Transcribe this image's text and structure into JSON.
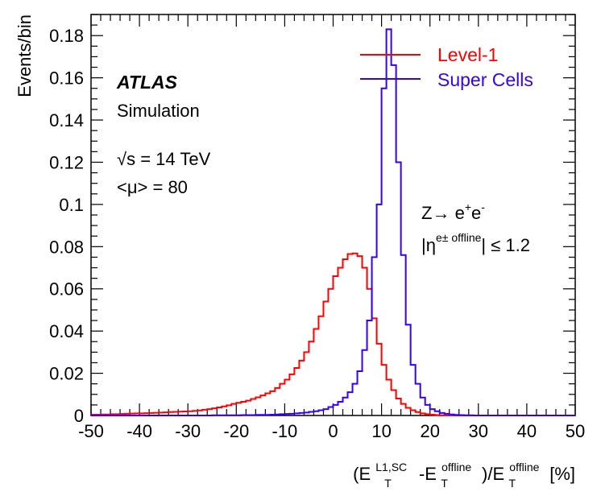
{
  "chart_data": {
    "type": "step-histogram",
    "xlabel": {
      "pre": "(E",
      "sub1": "T",
      "sup1": "L1,SC",
      "mid1": "-E",
      "sub2": "T",
      "sup2": "offline",
      "mid2": ")/E",
      "sub3": "T",
      "sup3": "offline",
      "post": " [%]"
    },
    "ylabel": "Events/bin",
    "xlim": [
      -50,
      50
    ],
    "ylim": [
      0,
      0.19
    ],
    "x_ticks": [
      "-50",
      "-40",
      "-30",
      "-20",
      "-10",
      "0",
      "10",
      "20",
      "30",
      "40",
      "50"
    ],
    "y_ticks": [
      "0",
      "0.02",
      "0.04",
      "0.06",
      "0.08",
      "0.1",
      "0.12",
      "0.14",
      "0.16",
      "0.18"
    ],
    "bin_width": 1,
    "series": [
      {
        "name": "Level-1",
        "color": "#ff0000",
        "bins_start": -50,
        "values": [
          0.0004,
          0.0004,
          0.0005,
          0.0005,
          0.0006,
          0.0006,
          0.0007,
          0.0008,
          0.0009,
          0.001,
          0.001,
          0.0011,
          0.0012,
          0.0013,
          0.0014,
          0.0015,
          0.0016,
          0.0017,
          0.0018,
          0.0019,
          0.002,
          0.0022,
          0.0024,
          0.0027,
          0.003,
          0.0034,
          0.0038,
          0.0043,
          0.0048,
          0.0055,
          0.006,
          0.0065,
          0.007,
          0.0078,
          0.0086,
          0.0095,
          0.0105,
          0.0115,
          0.013,
          0.015,
          0.017,
          0.0195,
          0.0225,
          0.026,
          0.03,
          0.035,
          0.041,
          0.047,
          0.054,
          0.06,
          0.066,
          0.07,
          0.074,
          0.0765,
          0.0768,
          0.0755,
          0.07,
          0.06,
          0.046,
          0.034,
          0.024,
          0.017,
          0.012,
          0.008,
          0.0055,
          0.0036,
          0.0025,
          0.0016,
          0.001,
          0.0006,
          0.0004,
          0.0002,
          0.0001,
          0.0001,
          0.0001,
          5e-05,
          5e-05,
          0,
          0,
          0,
          0,
          0,
          0,
          0,
          0,
          0,
          0,
          0,
          0,
          0,
          0,
          0,
          0,
          0,
          0,
          0,
          0,
          0,
          0,
          0
        ]
      },
      {
        "name": "Super Cells",
        "color": "#3300ff",
        "bins_start": -50,
        "values": [
          0,
          0,
          0,
          0,
          0,
          0,
          0,
          0,
          0,
          0,
          0,
          0,
          0,
          0,
          0,
          0,
          0,
          0,
          0,
          0,
          0,
          0,
          0,
          0,
          0,
          0.0001,
          0.0001,
          0.0001,
          0.0001,
          0.0001,
          0.0001,
          0.0002,
          0.0002,
          0.0002,
          0.0003,
          0.0003,
          0.0003,
          0.0004,
          0.0005,
          0.0006,
          0.0007,
          0.0008,
          0.001,
          0.0012,
          0.0014,
          0.0017,
          0.002,
          0.0025,
          0.003,
          0.004,
          0.005,
          0.0065,
          0.0085,
          0.011,
          0.015,
          0.021,
          0.031,
          0.045,
          0.075,
          0.1,
          0.155,
          0.183,
          0.166,
          0.12,
          0.076,
          0.043,
          0.024,
          0.015,
          0.0085,
          0.005,
          0.003,
          0.002,
          0.0012,
          0.0008,
          0.0005,
          0.0003,
          0.0002,
          0.0001,
          0.0001,
          0,
          0,
          0,
          0,
          0,
          0,
          0,
          0,
          0,
          0,
          0,
          0,
          0,
          0,
          0,
          0,
          0,
          0,
          0,
          0,
          0
        ]
      }
    ],
    "legend": {
      "position": "top-right"
    },
    "annotations": {
      "atlas": "ATLAS",
      "simulation": "Simulation",
      "sqrt_symbol": "√",
      "energy": "s = 14 TeV",
      "pileup": "<μ> = 80",
      "process_pre": "Z",
      "arrow": "→",
      "process_post": " e",
      "sup_plus": "+",
      "e2": "e",
      "sup_minus": "-",
      "eta_bar_open": "|η",
      "eta_sup": "e± offline",
      "eta_bar_close": "| ≤ 1.2"
    }
  }
}
